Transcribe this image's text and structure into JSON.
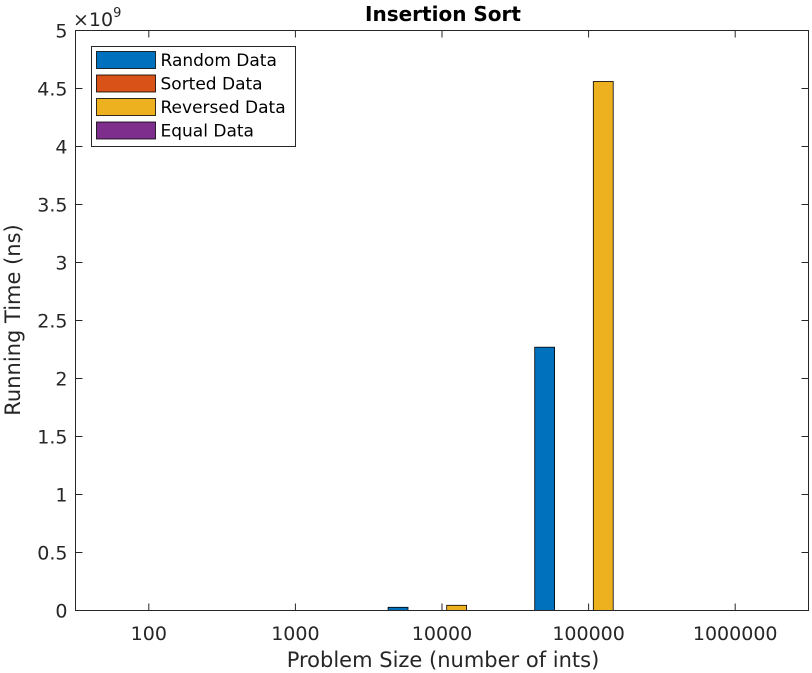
{
  "chart_data": {
    "type": "bar",
    "title": "Insertion Sort",
    "xlabel": "Problem Size (number of ints)",
    "ylabel": "Running Time (ns)",
    "categories": [
      "100",
      "1000",
      "10000",
      "100000",
      "1000000"
    ],
    "y_exponent_base": "×10",
    "y_exponent_power": "9",
    "ylim": [
      0,
      5000000000
    ],
    "yticks": [
      0,
      500000000,
      1000000000,
      1500000000,
      2000000000,
      2500000000,
      3000000000,
      3500000000,
      4000000000,
      4500000000,
      5000000000
    ],
    "ytick_labels": [
      "0",
      "0.5",
      "1",
      "1.5",
      "2",
      "2.5",
      "3",
      "3.5",
      "4",
      "4.5",
      "5"
    ],
    "grid": false,
    "legend_position": "top-left",
    "series": [
      {
        "name": "Random Data",
        "color": "#0072BD",
        "values": [
          0,
          0,
          28000000,
          2270000000,
          0
        ]
      },
      {
        "name": "Sorted Data",
        "color": "#D95319",
        "values": [
          0,
          0,
          0,
          0,
          0
        ]
      },
      {
        "name": "Reversed Data",
        "color": "#EDB120",
        "values": [
          0,
          0,
          45000000,
          4560000000,
          0
        ]
      },
      {
        "name": "Equal Data",
        "color": "#7E2F8E",
        "values": [
          0,
          0,
          0,
          0,
          0
        ]
      }
    ]
  }
}
